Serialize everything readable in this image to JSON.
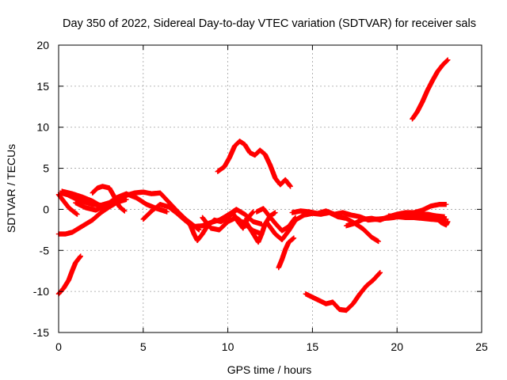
{
  "chart_data": {
    "type": "scatter",
    "title": "Day 350 of 2022, Sidereal Day-to-day VTEC variation (SDTVAR) for receiver sals",
    "xlabel": "GPS time / hours",
    "ylabel": "SDTVAR / TECUs",
    "xlim": [
      0,
      25
    ],
    "ylim": [
      -15,
      20
    ],
    "xticks": [
      0,
      5,
      10,
      15,
      20,
      25
    ],
    "yticks": [
      -15,
      -10,
      -5,
      0,
      5,
      10,
      15,
      20
    ],
    "grid": true,
    "marker": "+",
    "color": "#ff0000",
    "series": [
      {
        "name": "trace-1",
        "points": [
          [
            0.0,
            -10.3
          ],
          [
            0.3,
            -9.6
          ],
          [
            0.6,
            -8.6
          ],
          [
            0.8,
            -7.5
          ],
          [
            1.0,
            -6.5
          ],
          [
            1.3,
            -5.7
          ]
        ]
      },
      {
        "name": "trace-2",
        "points": [
          [
            0.0,
            -3.0
          ],
          [
            0.4,
            -3.0
          ],
          [
            0.8,
            -2.8
          ],
          [
            1.2,
            -2.3
          ],
          [
            1.6,
            -1.8
          ],
          [
            2.0,
            -1.3
          ],
          [
            2.5,
            -0.4
          ],
          [
            3.0,
            0.3
          ],
          [
            3.5,
            0.9
          ],
          [
            4.0,
            1.2
          ]
        ]
      },
      {
        "name": "trace-3",
        "points": [
          [
            0.1,
            2.0
          ],
          [
            0.5,
            1.8
          ],
          [
            1.0,
            1.3
          ],
          [
            1.5,
            0.9
          ],
          [
            2.0,
            0.6
          ],
          [
            2.5,
            0.5
          ],
          [
            3.0,
            0.8
          ],
          [
            3.5,
            1.2
          ],
          [
            4.0,
            1.7
          ],
          [
            4.5,
            2.0
          ],
          [
            5.0,
            2.1
          ],
          [
            5.5,
            1.9
          ],
          [
            6.0,
            2.0
          ],
          [
            6.5,
            0.9
          ],
          [
            7.0,
            -0.2
          ],
          [
            7.5,
            -1.2
          ],
          [
            8.0,
            -2.0
          ],
          [
            8.3,
            -2.5
          ]
        ]
      },
      {
        "name": "trace-4",
        "points": [
          [
            0.0,
            1.8
          ],
          [
            0.3,
            1.0
          ],
          [
            0.6,
            0.2
          ],
          [
            0.9,
            -0.3
          ],
          [
            1.1,
            -0.6
          ]
        ]
      },
      {
        "name": "trace-5",
        "points": [
          [
            0.2,
            2.2
          ],
          [
            0.8,
            1.9
          ],
          [
            1.4,
            1.5
          ],
          [
            2.0,
            1.0
          ],
          [
            2.5,
            0.4
          ],
          [
            2.8,
            0.1
          ]
        ]
      },
      {
        "name": "trace-6",
        "points": [
          [
            2.0,
            2.0
          ],
          [
            2.3,
            2.6
          ],
          [
            2.6,
            2.8
          ],
          [
            3.0,
            2.6
          ],
          [
            3.3,
            1.5
          ],
          [
            3.6,
            0.3
          ],
          [
            3.9,
            -0.2
          ]
        ]
      },
      {
        "name": "trace-7",
        "points": [
          [
            1.0,
            0.8
          ],
          [
            1.6,
            0.2
          ],
          [
            2.2,
            -0.1
          ],
          [
            2.8,
            0.5
          ],
          [
            3.4,
            1.4
          ],
          [
            4.0,
            1.9
          ],
          [
            4.6,
            1.4
          ],
          [
            5.2,
            0.6
          ],
          [
            5.8,
            0.1
          ],
          [
            6.4,
            -0.3
          ]
        ]
      },
      {
        "name": "trace-8",
        "points": [
          [
            5.0,
            -1.2
          ],
          [
            5.5,
            -0.2
          ],
          [
            6.0,
            0.6
          ],
          [
            6.5,
            0.3
          ],
          [
            7.0,
            -0.5
          ],
          [
            7.5,
            -1.4
          ],
          [
            8.0,
            -2.1
          ],
          [
            8.5,
            -2.0
          ],
          [
            9.0,
            -1.6
          ],
          [
            9.5,
            -1.3
          ],
          [
            10.0,
            -0.7
          ],
          [
            10.5,
            0.0
          ],
          [
            11.0,
            -0.6
          ],
          [
            11.5,
            -1.5
          ],
          [
            12.0,
            -1.8
          ]
        ]
      },
      {
        "name": "trace-9",
        "points": [
          [
            7.5,
            -1.2
          ],
          [
            7.8,
            -2.0
          ],
          [
            8.0,
            -3.0
          ],
          [
            8.2,
            -3.8
          ],
          [
            8.5,
            -3.0
          ],
          [
            8.8,
            -2.0
          ],
          [
            9.2,
            -1.3
          ],
          [
            9.6,
            -1.5
          ],
          [
            10.0,
            -1.0
          ],
          [
            10.4,
            -0.3
          ]
        ]
      },
      {
        "name": "trace-10",
        "points": [
          [
            8.5,
            -1.0
          ],
          [
            9.0,
            -2.3
          ],
          [
            9.5,
            -2.5
          ],
          [
            10.0,
            -1.5
          ],
          [
            10.5,
            -1.0
          ],
          [
            11.0,
            -1.8
          ],
          [
            11.5,
            -2.6
          ],
          [
            12.0,
            -3.0
          ]
        ]
      },
      {
        "name": "trace-11",
        "points": [
          [
            10.3,
            -0.5
          ],
          [
            10.6,
            -1.5
          ],
          [
            10.9,
            -2.3
          ],
          [
            11.2,
            -1.0
          ],
          [
            11.5,
            -0.3
          ]
        ]
      },
      {
        "name": "trace-12",
        "points": [
          [
            11.0,
            -1.3
          ],
          [
            11.3,
            -2.3
          ],
          [
            11.6,
            -3.3
          ],
          [
            11.8,
            -4.0
          ],
          [
            12.0,
            -3.0
          ],
          [
            12.2,
            -1.8
          ],
          [
            12.5,
            -0.8
          ],
          [
            12.8,
            -0.4
          ]
        ]
      },
      {
        "name": "trace-13",
        "points": [
          [
            11.7,
            -0.3
          ],
          [
            12.1,
            0.1
          ],
          [
            12.4,
            -0.7
          ],
          [
            12.8,
            -1.7
          ],
          [
            13.2,
            -2.6
          ],
          [
            13.6,
            -2.1
          ],
          [
            14.0,
            -1.0
          ]
        ]
      },
      {
        "name": "trace-14",
        "points": [
          [
            12.3,
            -1.6
          ],
          [
            12.8,
            -3.0
          ],
          [
            13.2,
            -3.7
          ],
          [
            13.6,
            -2.6
          ],
          [
            14.0,
            -1.3
          ],
          [
            14.5,
            -0.7
          ],
          [
            15.0,
            -0.5
          ],
          [
            15.5,
            -0.6
          ],
          [
            16.0,
            -0.4
          ],
          [
            16.5,
            -0.9
          ],
          [
            17.0,
            -1.1
          ],
          [
            17.5,
            -1.7
          ],
          [
            18.0,
            -2.4
          ],
          [
            18.5,
            -3.4
          ],
          [
            18.9,
            -3.9
          ]
        ]
      },
      {
        "name": "trace-15",
        "points": [
          [
            13.8,
            -0.4
          ],
          [
            14.3,
            -0.2
          ],
          [
            14.8,
            -0.3
          ],
          [
            15.3,
            -0.5
          ],
          [
            15.8,
            -0.2
          ],
          [
            16.3,
            -0.6
          ],
          [
            16.8,
            -0.4
          ],
          [
            17.3,
            -0.7
          ],
          [
            17.8,
            -0.9
          ],
          [
            18.3,
            -1.3
          ],
          [
            18.8,
            -1.2
          ],
          [
            19.3,
            -1.1
          ],
          [
            19.8,
            -1.0
          ],
          [
            20.3,
            -0.8
          ],
          [
            20.8,
            -0.7
          ],
          [
            21.3,
            -0.6
          ],
          [
            21.8,
            -0.6
          ],
          [
            22.3,
            -0.8
          ],
          [
            22.8,
            -0.9
          ]
        ]
      },
      {
        "name": "trace-16",
        "points": [
          [
            17.0,
            -2.0
          ],
          [
            17.5,
            -1.7
          ],
          [
            18.0,
            -1.2
          ],
          [
            18.5,
            -1.1
          ],
          [
            19.0,
            -1.3
          ],
          [
            19.5,
            -0.9
          ],
          [
            20.0,
            -0.6
          ],
          [
            20.5,
            -0.4
          ],
          [
            21.0,
            -0.4
          ],
          [
            21.5,
            -0.1
          ],
          [
            22.0,
            0.4
          ],
          [
            22.5,
            0.6
          ],
          [
            22.9,
            0.6
          ]
        ]
      },
      {
        "name": "trace-17",
        "points": [
          [
            19.5,
            -0.8
          ],
          [
            20.0,
            -0.9
          ],
          [
            20.5,
            -1.0
          ],
          [
            21.0,
            -1.0
          ],
          [
            21.5,
            -1.1
          ],
          [
            22.0,
            -1.2
          ],
          [
            22.5,
            -1.3
          ],
          [
            22.9,
            -1.2
          ]
        ]
      },
      {
        "name": "trace-18",
        "points": [
          [
            22.3,
            -1.0
          ],
          [
            22.6,
            -1.6
          ],
          [
            22.9,
            -1.9
          ],
          [
            23.0,
            -1.5
          ]
        ]
      },
      {
        "name": "trace-19",
        "points": [
          [
            9.4,
            4.6
          ],
          [
            9.8,
            5.2
          ],
          [
            10.1,
            6.3
          ],
          [
            10.4,
            7.7
          ],
          [
            10.7,
            8.3
          ],
          [
            11.0,
            7.9
          ],
          [
            11.3,
            6.9
          ],
          [
            11.6,
            6.6
          ],
          [
            11.9,
            7.2
          ],
          [
            12.2,
            6.7
          ],
          [
            12.5,
            5.4
          ],
          [
            12.8,
            3.8
          ],
          [
            13.1,
            3.0
          ],
          [
            13.4,
            3.6
          ],
          [
            13.7,
            2.8
          ]
        ]
      },
      {
        "name": "trace-20",
        "points": [
          [
            13.0,
            -7.1
          ],
          [
            13.2,
            -6.1
          ],
          [
            13.4,
            -4.9
          ],
          [
            13.6,
            -4.0
          ],
          [
            13.9,
            -3.5
          ]
        ]
      },
      {
        "name": "trace-21",
        "points": [
          [
            14.6,
            -10.3
          ],
          [
            15.0,
            -10.7
          ],
          [
            15.4,
            -11.1
          ],
          [
            15.8,
            -11.5
          ],
          [
            16.2,
            -11.3
          ],
          [
            16.6,
            -12.2
          ],
          [
            17.0,
            -12.3
          ],
          [
            17.4,
            -11.5
          ],
          [
            17.8,
            -10.3
          ],
          [
            18.2,
            -9.3
          ],
          [
            18.6,
            -8.6
          ],
          [
            19.0,
            -7.7
          ]
        ]
      },
      {
        "name": "trace-22",
        "points": [
          [
            20.9,
            11.0
          ],
          [
            21.2,
            11.9
          ],
          [
            21.5,
            13.1
          ],
          [
            21.8,
            14.5
          ],
          [
            22.1,
            15.7
          ],
          [
            22.4,
            16.8
          ],
          [
            22.7,
            17.6
          ],
          [
            23.0,
            18.2
          ]
        ]
      }
    ]
  },
  "x_tick_labels": [
    "0",
    "5",
    "10",
    "15",
    "20",
    "25"
  ],
  "y_tick_labels": [
    "-15",
    "-10",
    "-5",
    "0",
    "5",
    "10",
    "15",
    "20"
  ]
}
